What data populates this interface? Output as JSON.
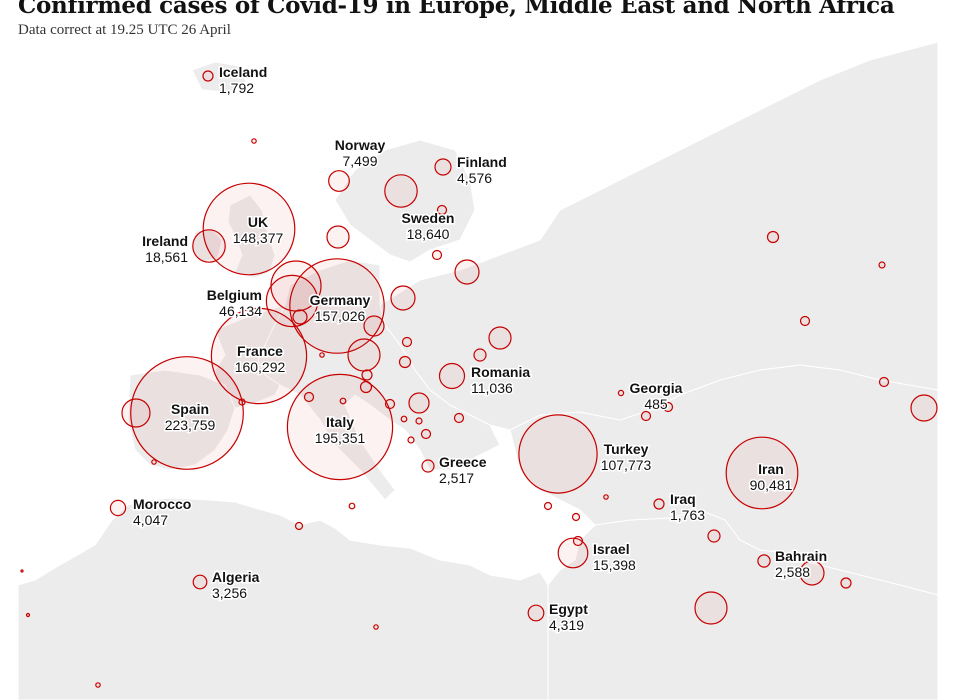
{
  "title": "Confirmed cases of Covid-19 in Europe, Middle East and North Africa",
  "subtitle": "Data correct at 19.25 UTC 26 April",
  "colors": {
    "land": "#ececec",
    "border": "#ffffff",
    "bubble_stroke": "#c70000",
    "bubble_fill": "rgba(199,0,0,0.05)"
  },
  "labeled_countries": [
    {
      "name": "Iceland",
      "value": "1,792",
      "cases": 1792
    },
    {
      "name": "Norway",
      "value": "7,499",
      "cases": 7499
    },
    {
      "name": "Finland",
      "value": "4,576",
      "cases": 4576
    },
    {
      "name": "Sweden",
      "value": "18,640",
      "cases": 18640
    },
    {
      "name": "UK",
      "value": "148,377",
      "cases": 148377
    },
    {
      "name": "Ireland",
      "value": "18,561",
      "cases": 18561
    },
    {
      "name": "Belgium",
      "value": "46,134",
      "cases": 46134
    },
    {
      "name": "Germany",
      "value": "157,026",
      "cases": 157026
    },
    {
      "name": "France",
      "value": "160,292",
      "cases": 160292
    },
    {
      "name": "Spain",
      "value": "223,759",
      "cases": 223759
    },
    {
      "name": "Italy",
      "value": "195,351",
      "cases": 195351
    },
    {
      "name": "Romania",
      "value": "11,036",
      "cases": 11036
    },
    {
      "name": "Greece",
      "value": "2,517",
      "cases": 2517
    },
    {
      "name": "Georgia",
      "value": "485",
      "cases": 485
    },
    {
      "name": "Turkey",
      "value": "107,773",
      "cases": 107773
    },
    {
      "name": "Iran",
      "value": "90,481",
      "cases": 90481
    },
    {
      "name": "Iraq",
      "value": "1,763",
      "cases": 1763
    },
    {
      "name": "Israel",
      "value": "15,398",
      "cases": 15398
    },
    {
      "name": "Bahrain",
      "value": "2,588",
      "cases": 2588
    },
    {
      "name": "Morocco",
      "value": "4,047",
      "cases": 4047
    },
    {
      "name": "Algeria",
      "value": "3,256",
      "cases": 3256
    },
    {
      "name": "Egypt",
      "value": "4,319",
      "cases": 4319
    }
  ]
}
